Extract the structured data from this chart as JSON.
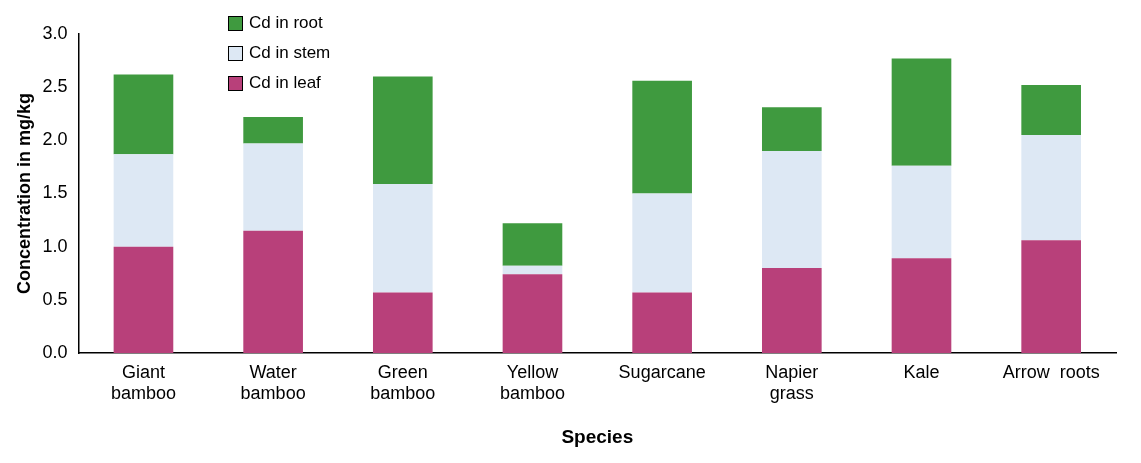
{
  "chart_data": {
    "type": "bar",
    "stacked": true,
    "xlabel": "Species",
    "ylabel": "Concentration in mg/kg",
    "categories": [
      "Giant\nbamboo",
      "Water\nbamboo",
      "Green\nbamboo",
      "Yellow\nbamboo",
      "Sugarcane",
      "Napier\ngrass",
      "Kale",
      "Arrow  roots"
    ],
    "series": [
      {
        "name": "Cd in leaf",
        "color": "#b8407a",
        "values": [
          1.0,
          1.15,
          0.57,
          0.74,
          0.57,
          0.8,
          0.89,
          1.06
        ]
      },
      {
        "name": "Cd in stem",
        "color": "#dde8f4",
        "values": [
          0.87,
          0.82,
          1.02,
          0.08,
          0.93,
          1.1,
          0.87,
          0.99
        ]
      },
      {
        "name": "Cd in root",
        "color": "#3f9a3f",
        "values": [
          0.75,
          0.25,
          1.01,
          0.4,
          1.06,
          0.41,
          1.01,
          0.47
        ]
      }
    ],
    "ylim": [
      0,
      3
    ],
    "yticks": [
      {
        "value": 0,
        "label": "0.0"
      },
      0.5,
      {
        "value": 1,
        "label": "1.0"
      },
      1.5,
      {
        "value": 2,
        "label": "2.0"
      },
      2.5,
      {
        "value": 3,
        "label": "3.0"
      }
    ],
    "grid": false,
    "legend": "top left"
  }
}
